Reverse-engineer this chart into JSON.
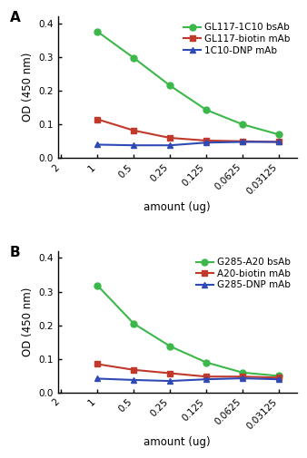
{
  "x_labels": [
    "2",
    "1",
    "0.5",
    "0.25",
    "0.125",
    "0.0625",
    "0.03125"
  ],
  "x_positions": [
    0,
    1,
    2,
    3,
    4,
    5,
    6
  ],
  "x_data_positions": [
    1,
    2,
    3,
    4,
    5,
    6
  ],
  "panel_A": {
    "label": "A",
    "series": [
      {
        "name": "GL117-1C10 bsAb",
        "color": "#3CB84A",
        "marker": "o",
        "values": [
          0.375,
          0.297,
          0.215,
          0.143,
          0.1,
          0.07
        ]
      },
      {
        "name": "GL117-biotin mAb",
        "color": "#C0392B",
        "marker": "s",
        "values": [
          0.115,
          0.082,
          0.06,
          0.052,
          0.05,
          0.048
        ]
      },
      {
        "name": "1C10-DNP mAb",
        "color": "#2E4BB5",
        "marker": "^",
        "values": [
          0.04,
          0.038,
          0.038,
          0.046,
          0.048,
          0.048
        ]
      }
    ],
    "ylim": [
      0.0,
      0.42
    ],
    "yticks": [
      0.0,
      0.1,
      0.2,
      0.3,
      0.4
    ],
    "ylabel": "OD (450 nm)",
    "xlabel": "amount (ug)"
  },
  "panel_B": {
    "label": "B",
    "series": [
      {
        "name": "G285-A20 bsAb",
        "color": "#3CB84A",
        "marker": "o",
        "values": [
          0.318,
          0.205,
          0.138,
          0.09,
          0.06,
          0.05
        ]
      },
      {
        "name": "A20-biotin mAb",
        "color": "#C0392B",
        "marker": "s",
        "values": [
          0.085,
          0.068,
          0.058,
          0.048,
          0.048,
          0.045
        ]
      },
      {
        "name": "G285-DNP mAb",
        "color": "#2E4BB5",
        "marker": "^",
        "values": [
          0.042,
          0.038,
          0.035,
          0.04,
          0.043,
          0.04
        ]
      }
    ],
    "ylim": [
      0.0,
      0.42
    ],
    "yticks": [
      0.0,
      0.1,
      0.2,
      0.3,
      0.4
    ],
    "ylabel": "OD (450 nm)",
    "xlabel": "amount (ug)"
  },
  "background_color": "#ffffff",
  "linewidth": 1.5,
  "markersize": 5,
  "label_fontsize": 8.5,
  "tick_fontsize": 7.5,
  "legend_fontsize": 7.5,
  "panel_label_fontsize": 11
}
